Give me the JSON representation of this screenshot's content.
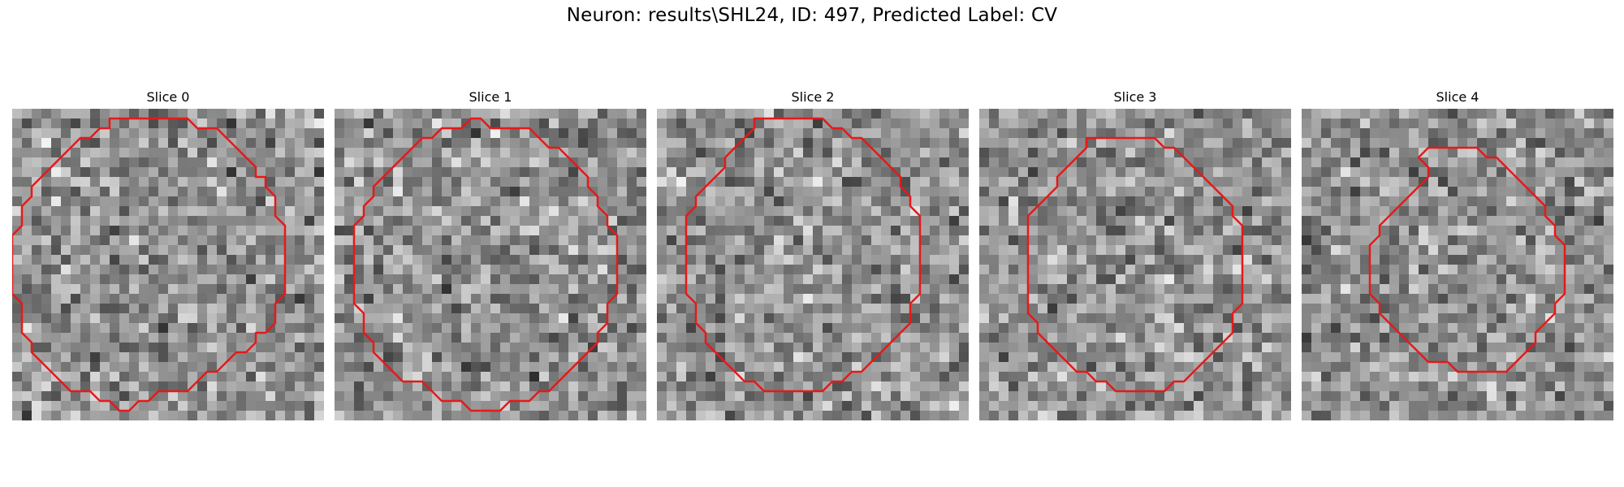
{
  "figure": {
    "title": "Neuron: results\\SHL24, ID: 497, Predicted Label: CV"
  },
  "style": {
    "contour_color": "#e61919",
    "colormap": "gray"
  },
  "slices": [
    {
      "title": "Slice 0",
      "contour": [
        [
          10,
          1
        ],
        [
          18,
          1
        ],
        [
          19,
          2
        ],
        [
          21,
          2
        ],
        [
          23,
          4
        ],
        [
          25,
          6
        ],
        [
          25,
          7
        ],
        [
          26,
          7
        ],
        [
          26,
          8
        ],
        [
          27,
          9
        ],
        [
          27,
          11
        ],
        [
          28,
          12
        ],
        [
          28,
          19
        ],
        [
          27,
          20
        ],
        [
          27,
          22
        ],
        [
          26,
          23
        ],
        [
          25,
          23
        ],
        [
          25,
          24
        ],
        [
          24,
          25
        ],
        [
          23,
          25
        ],
        [
          21,
          27
        ],
        [
          20,
          27
        ],
        [
          18,
          29
        ],
        [
          15,
          29
        ],
        [
          14,
          30
        ],
        [
          13,
          30
        ],
        [
          12,
          31
        ],
        [
          11,
          31
        ],
        [
          10,
          30
        ],
        [
          9,
          30
        ],
        [
          8,
          29
        ],
        [
          6,
          29
        ],
        [
          5,
          28
        ],
        [
          4,
          27
        ],
        [
          3,
          26
        ],
        [
          2,
          25
        ],
        [
          2,
          24
        ],
        [
          1,
          23
        ],
        [
          1,
          20
        ],
        [
          0,
          19
        ],
        [
          0,
          13
        ],
        [
          1,
          12
        ],
        [
          1,
          10
        ],
        [
          2,
          9
        ],
        [
          2,
          8
        ],
        [
          3,
          7
        ],
        [
          4,
          6
        ],
        [
          5,
          5
        ],
        [
          6,
          4
        ],
        [
          7,
          3
        ],
        [
          8,
          3
        ],
        [
          9,
          2
        ],
        [
          10,
          2
        ]
      ]
    },
    {
      "title": "Slice 1",
      "contour": [
        [
          14,
          1
        ],
        [
          15,
          1
        ],
        [
          16,
          2
        ],
        [
          20,
          2
        ],
        [
          21,
          3
        ],
        [
          22,
          4
        ],
        [
          23,
          4
        ],
        [
          24,
          5
        ],
        [
          25,
          6
        ],
        [
          26,
          7
        ],
        [
          26,
          8
        ],
        [
          27,
          9
        ],
        [
          27,
          10
        ],
        [
          28,
          11
        ],
        [
          28,
          12
        ],
        [
          29,
          13
        ],
        [
          29,
          19
        ],
        [
          28,
          20
        ],
        [
          28,
          22
        ],
        [
          27,
          23
        ],
        [
          27,
          24
        ],
        [
          26,
          25
        ],
        [
          25,
          26
        ],
        [
          24,
          27
        ],
        [
          23,
          28
        ],
        [
          22,
          29
        ],
        [
          21,
          29
        ],
        [
          20,
          30
        ],
        [
          18,
          30
        ],
        [
          17,
          31
        ],
        [
          14,
          31
        ],
        [
          13,
          30
        ],
        [
          11,
          30
        ],
        [
          10,
          29
        ],
        [
          9,
          28
        ],
        [
          7,
          28
        ],
        [
          6,
          27
        ],
        [
          5,
          26
        ],
        [
          4,
          25
        ],
        [
          4,
          24
        ],
        [
          3,
          23
        ],
        [
          3,
          21
        ],
        [
          2,
          20
        ],
        [
          2,
          12
        ],
        [
          3,
          11
        ],
        [
          3,
          10
        ],
        [
          4,
          9
        ],
        [
          4,
          8
        ],
        [
          5,
          7
        ],
        [
          6,
          6
        ],
        [
          7,
          5
        ],
        [
          8,
          4
        ],
        [
          9,
          3
        ],
        [
          10,
          3
        ],
        [
          11,
          2
        ],
        [
          13,
          2
        ]
      ]
    },
    {
      "title": "Slice 2",
      "contour": [
        [
          10,
          1
        ],
        [
          17,
          1
        ],
        [
          18,
          2
        ],
        [
          19,
          2
        ],
        [
          20,
          3
        ],
        [
          21,
          3
        ],
        [
          22,
          4
        ],
        [
          23,
          5
        ],
        [
          24,
          6
        ],
        [
          25,
          7
        ],
        [
          25,
          8
        ],
        [
          26,
          9
        ],
        [
          26,
          10
        ],
        [
          27,
          11
        ],
        [
          27,
          19
        ],
        [
          26,
          20
        ],
        [
          26,
          22
        ],
        [
          25,
          23
        ],
        [
          24,
          24
        ],
        [
          23,
          25
        ],
        [
          22,
          26
        ],
        [
          21,
          27
        ],
        [
          20,
          27
        ],
        [
          19,
          28
        ],
        [
          18,
          28
        ],
        [
          17,
          29
        ],
        [
          11,
          29
        ],
        [
          10,
          28
        ],
        [
          9,
          28
        ],
        [
          8,
          27
        ],
        [
          7,
          26
        ],
        [
          6,
          25
        ],
        [
          5,
          24
        ],
        [
          5,
          23
        ],
        [
          4,
          22
        ],
        [
          4,
          20
        ],
        [
          3,
          19
        ],
        [
          3,
          11
        ],
        [
          4,
          10
        ],
        [
          4,
          9
        ],
        [
          5,
          8
        ],
        [
          6,
          7
        ],
        [
          7,
          6
        ],
        [
          7,
          5
        ],
        [
          8,
          4
        ],
        [
          9,
          3
        ],
        [
          10,
          2
        ]
      ]
    },
    {
      "title": "Slice 3",
      "contour": [
        [
          11,
          3
        ],
        [
          18,
          3
        ],
        [
          19,
          4
        ],
        [
          20,
          4
        ],
        [
          21,
          5
        ],
        [
          22,
          6
        ],
        [
          23,
          7
        ],
        [
          24,
          8
        ],
        [
          25,
          9
        ],
        [
          26,
          10
        ],
        [
          26,
          11
        ],
        [
          27,
          12
        ],
        [
          27,
          20
        ],
        [
          26,
          21
        ],
        [
          26,
          23
        ],
        [
          25,
          24
        ],
        [
          24,
          25
        ],
        [
          23,
          26
        ],
        [
          22,
          27
        ],
        [
          21,
          28
        ],
        [
          20,
          28
        ],
        [
          19,
          29
        ],
        [
          14,
          29
        ],
        [
          13,
          28
        ],
        [
          12,
          28
        ],
        [
          11,
          27
        ],
        [
          10,
          27
        ],
        [
          9,
          26
        ],
        [
          8,
          25
        ],
        [
          7,
          24
        ],
        [
          6,
          23
        ],
        [
          6,
          22
        ],
        [
          5,
          21
        ],
        [
          5,
          11
        ],
        [
          6,
          10
        ],
        [
          7,
          9
        ],
        [
          8,
          8
        ],
        [
          8,
          7
        ],
        [
          9,
          6
        ],
        [
          10,
          5
        ],
        [
          11,
          4
        ]
      ]
    },
    {
      "title": "Slice 4",
      "contour": [
        [
          13,
          4
        ],
        [
          18,
          4
        ],
        [
          19,
          5
        ],
        [
          20,
          5
        ],
        [
          21,
          6
        ],
        [
          22,
          7
        ],
        [
          23,
          8
        ],
        [
          24,
          9
        ],
        [
          25,
          10
        ],
        [
          25,
          11
        ],
        [
          26,
          12
        ],
        [
          26,
          13
        ],
        [
          27,
          14
        ],
        [
          27,
          19
        ],
        [
          26,
          20
        ],
        [
          26,
          21
        ],
        [
          25,
          22
        ],
        [
          24,
          23
        ],
        [
          24,
          24
        ],
        [
          23,
          25
        ],
        [
          22,
          26
        ],
        [
          21,
          27
        ],
        [
          16,
          27
        ],
        [
          15,
          26
        ],
        [
          14,
          26
        ],
        [
          13,
          26
        ],
        [
          12,
          25
        ],
        [
          11,
          24
        ],
        [
          10,
          23
        ],
        [
          9,
          22
        ],
        [
          8,
          21
        ],
        [
          8,
          20
        ],
        [
          7,
          19
        ],
        [
          7,
          14
        ],
        [
          8,
          13
        ],
        [
          8,
          12
        ],
        [
          9,
          11
        ],
        [
          10,
          10
        ],
        [
          11,
          9
        ],
        [
          12,
          8
        ],
        [
          13,
          7
        ],
        [
          13,
          6
        ],
        [
          12,
          5
        ]
      ]
    }
  ]
}
